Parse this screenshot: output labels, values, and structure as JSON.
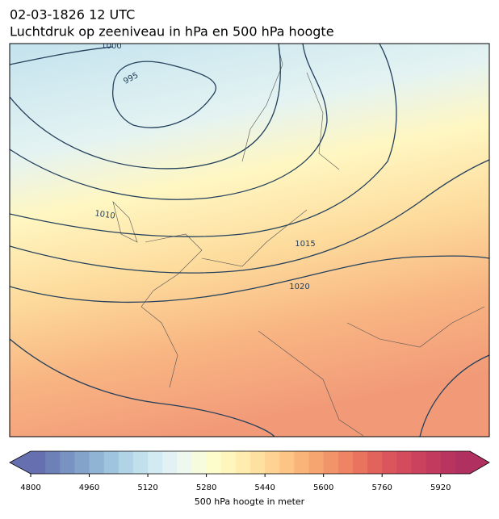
{
  "title": "02-03-1826 12 UTC",
  "subtitle": "Luchtdruk op zeeniveau in hPa en 500 hPa hoogte",
  "contour_labels": [
    "1000",
    "995",
    "1010",
    "1015",
    "1020"
  ],
  "colorbar": {
    "label": "500 hPa hoogte in meter",
    "lim": [
      4800,
      6000
    ],
    "ticks": [
      4800,
      4960,
      5120,
      5280,
      5440,
      5600,
      5760,
      5920
    ],
    "colors": [
      "#6670b0",
      "#6d80b8",
      "#7892c2",
      "#83a3cb",
      "#8fb4d4",
      "#9fc4dd",
      "#b0d3e6",
      "#c1e0ec",
      "#d2eaf1",
      "#e2f2f4",
      "#eef8ef",
      "#f6fbde",
      "#fdfccb",
      "#fff6bd",
      "#ffecae",
      "#fee0a0",
      "#fdd292",
      "#fcc485",
      "#f9b47a",
      "#f6a470",
      "#f29469",
      "#ee8464",
      "#e9735f",
      "#e2635c",
      "#db565c",
      "#d34b5d",
      "#cb425e",
      "#c23b5f",
      "#b93560",
      "#b03060"
    ]
  }
}
